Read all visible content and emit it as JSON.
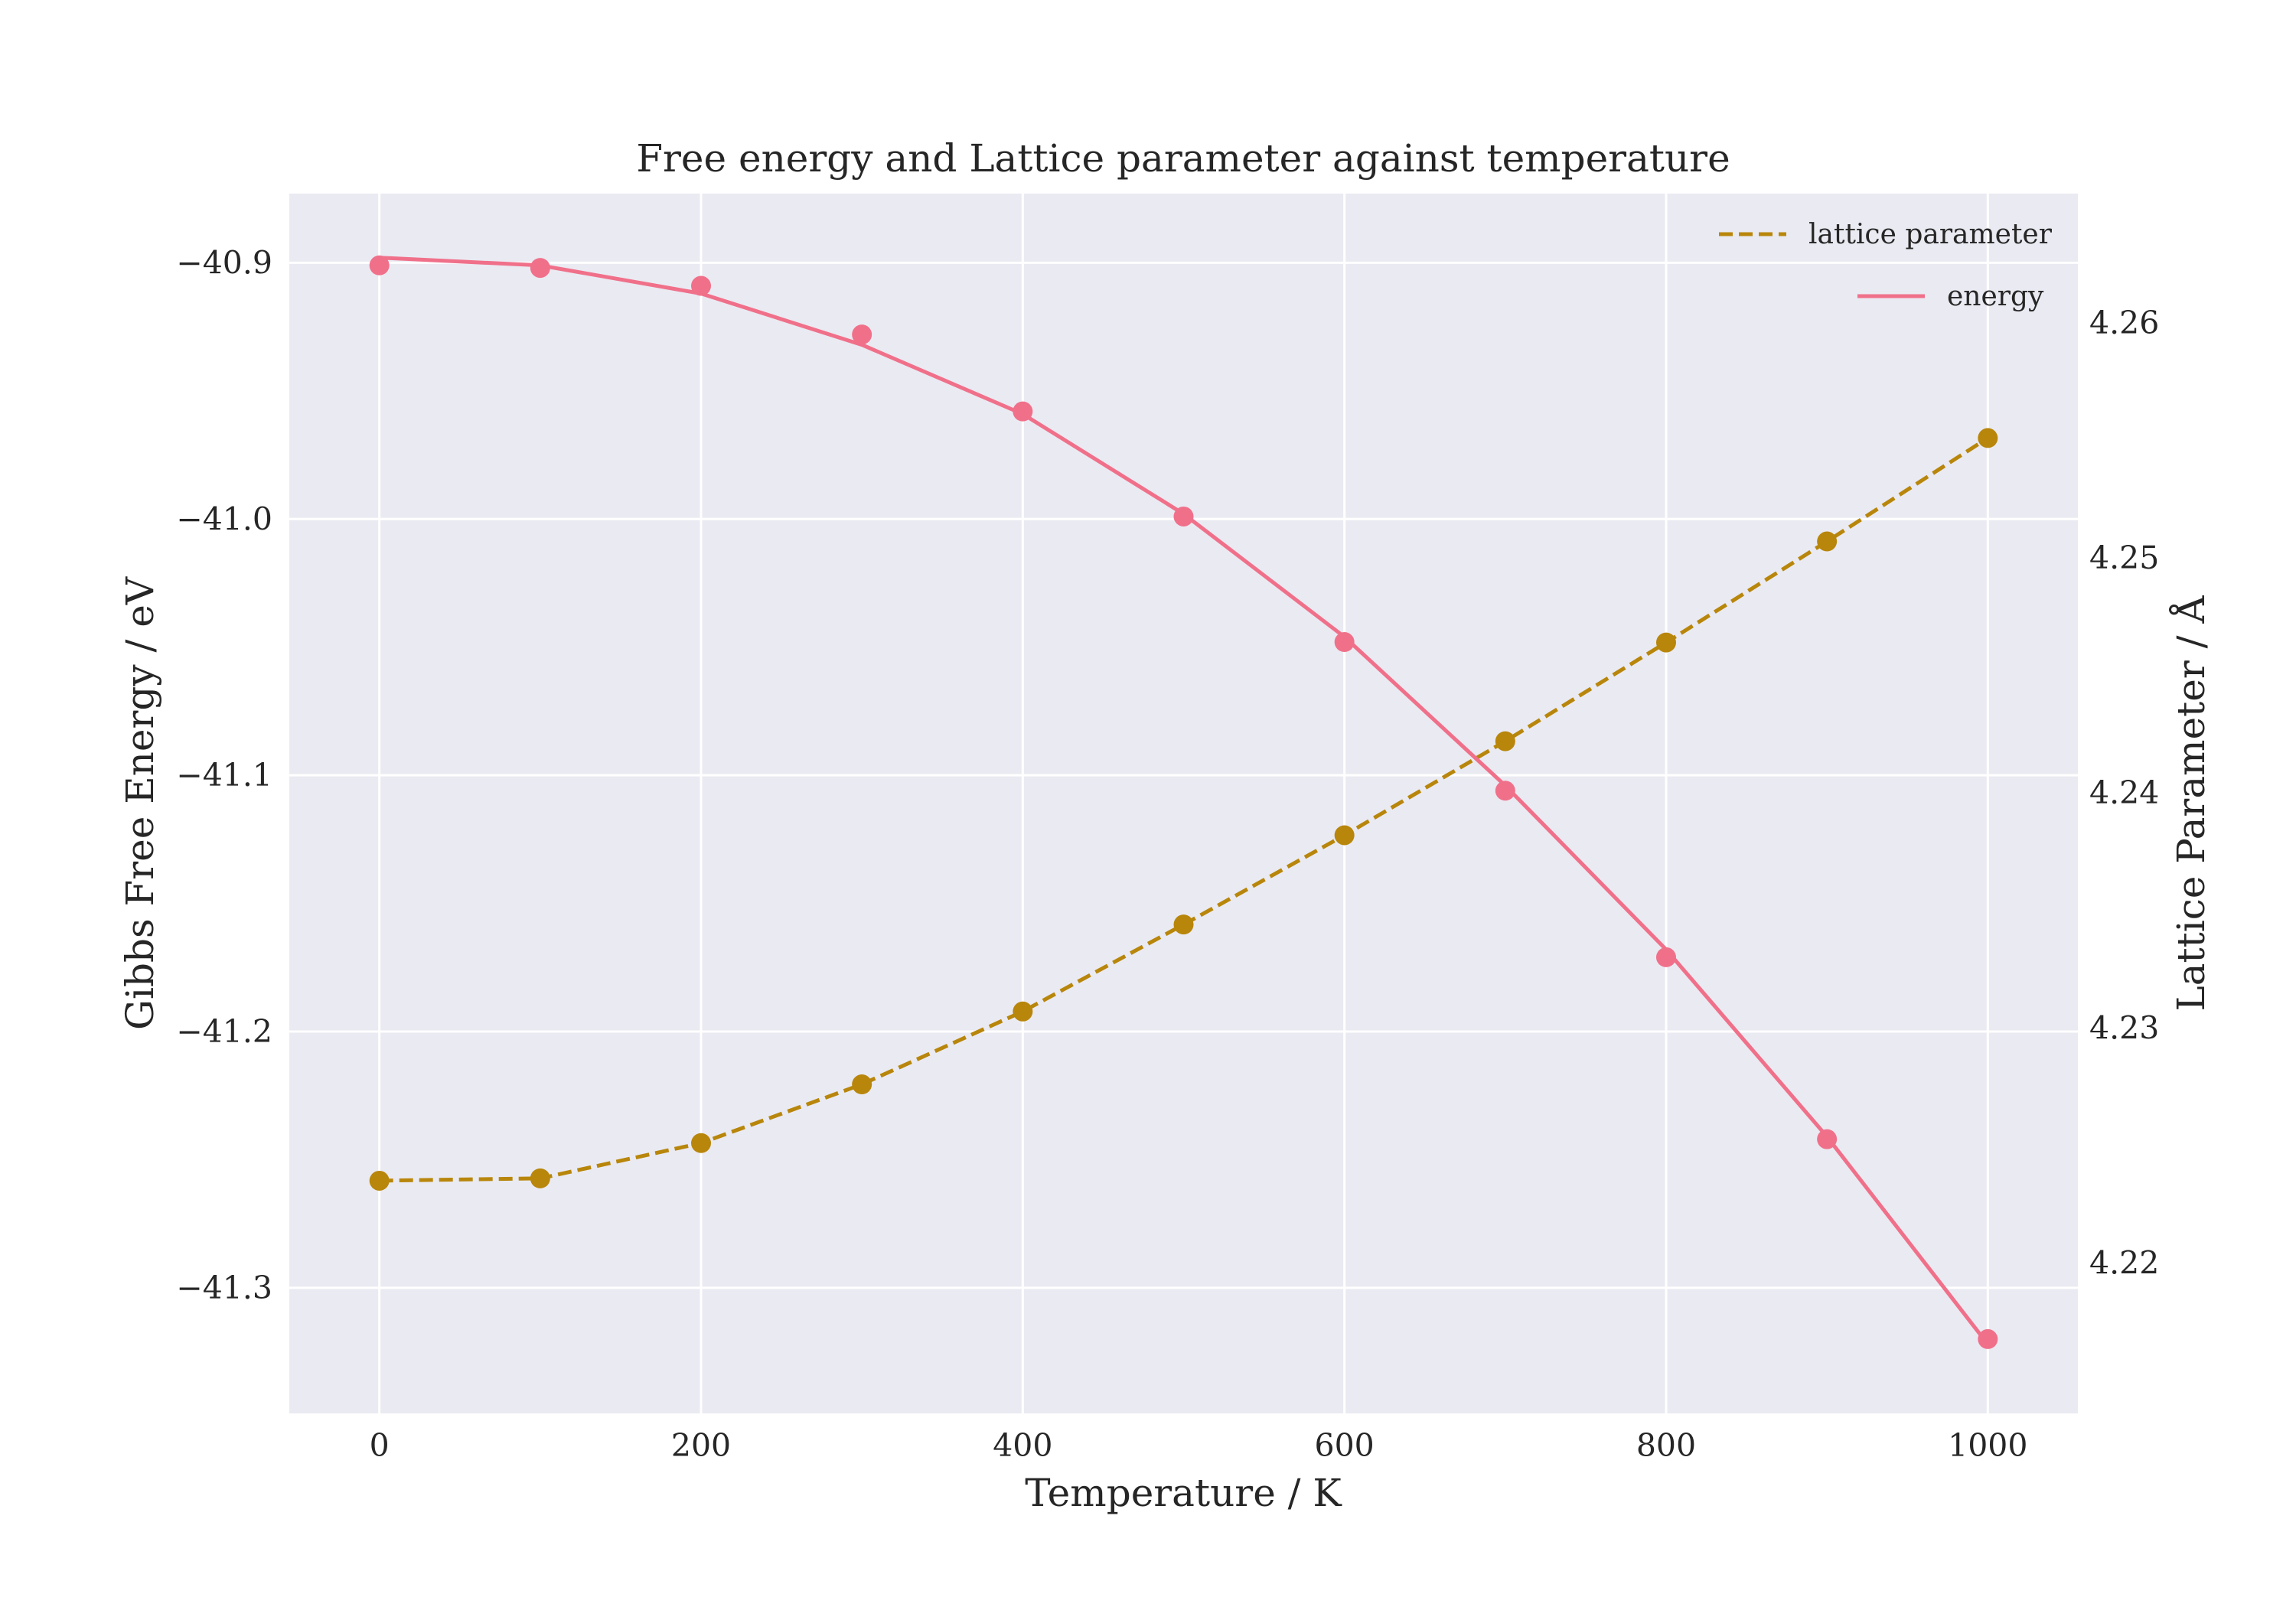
{
  "chart_data": {
    "type": "line",
    "title": "Free energy and Lattice parameter against temperature",
    "xlabel": "Temperature / K",
    "ylabel": "Gibbs Free Energy / eV",
    "y2label": "Lattice Parameter / Å",
    "xlim": [
      -56,
      1056
    ],
    "ylim": [
      -41.349,
      -40.873
    ],
    "y2lim": [
      4.2136,
      4.2655
    ],
    "xticks": [
      0,
      200,
      400,
      600,
      800,
      1000
    ],
    "xtick_labels": [
      "0",
      "200",
      "400",
      "600",
      "800",
      "1000"
    ],
    "yticks": [
      -40.9,
      -41.0,
      -41.1,
      -41.2,
      -41.3
    ],
    "ytick_labels": [
      "−40.9",
      "−41.0",
      "−41.1",
      "−41.2",
      "−41.3"
    ],
    "y2ticks": [
      4.26,
      4.25,
      4.24,
      4.23,
      4.22
    ],
    "y2tick_labels": [
      "4.26",
      "4.25",
      "4.24",
      "4.23",
      "4.22"
    ],
    "grid": true,
    "legend_position": "top-right",
    "x": [
      0,
      100,
      200,
      300,
      400,
      500,
      600,
      700,
      800,
      900,
      1000
    ],
    "series": [
      {
        "name": "lattice parameter",
        "axis": "right",
        "style": "dashed",
        "color": "#b8860b",
        "points": [
          4.2235,
          4.2236,
          4.2251,
          4.2276,
          4.2307,
          4.2344,
          4.2382,
          4.2422,
          4.2464,
          4.2507,
          4.2551
        ],
        "curve": [
          4.2235,
          4.2236,
          4.2251,
          4.2276,
          4.2307,
          4.2344,
          4.2382,
          4.2422,
          4.2464,
          4.2507,
          4.2551
        ]
      },
      {
        "name": "energy",
        "axis": "left",
        "style": "solid",
        "color": "#f0708a",
        "points": [
          -40.901,
          -40.902,
          -40.909,
          -40.928,
          -40.958,
          -40.999,
          -41.048,
          -41.106,
          -41.171,
          -41.242,
          -41.32
        ],
        "curve": [
          -40.898,
          -40.901,
          -40.912,
          -40.932,
          -40.959,
          -40.998,
          -41.046,
          -41.104,
          -41.168,
          -41.241,
          -41.322
        ]
      }
    ]
  }
}
